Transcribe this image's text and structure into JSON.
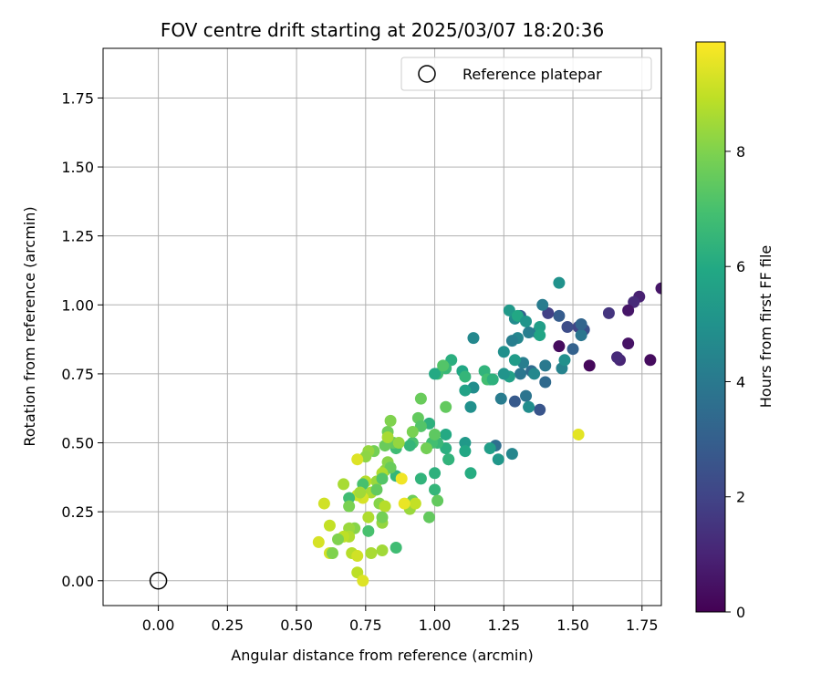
{
  "chart_data": {
    "type": "scatter",
    "title": "FOV centre drift starting at 2025/03/07 18:20:36",
    "xlabel": "Angular distance from reference (arcmin)",
    "ylabel": "Rotation from reference (arcmin)",
    "xlim": [
      -0.2,
      1.82
    ],
    "ylim": [
      -0.09,
      1.93
    ],
    "x_ticks": [
      "0.00",
      "0.25",
      "0.50",
      "0.75",
      "1.00",
      "1.25",
      "1.50",
      "1.75"
    ],
    "y_ticks": [
      "0.00",
      "0.25",
      "0.50",
      "0.75",
      "1.00",
      "1.25",
      "1.50",
      "1.75"
    ],
    "grid": true,
    "legend": {
      "position": "top-right",
      "entries": [
        {
          "label": "Reference platepar",
          "marker": "open-circle"
        }
      ]
    },
    "reference_point": {
      "x": 0.0,
      "y": 0.0
    },
    "colorbar": {
      "label": "Hours from first FF file",
      "range": [
        0,
        9.9
      ],
      "ticks": [
        "0",
        "2",
        "4",
        "6",
        "8"
      ],
      "colormap": "viridis"
    },
    "series": [
      {
        "points": [
          [
            1.45,
            0.85,
            0.3
          ],
          [
            1.56,
            0.78,
            0.2
          ],
          [
            1.7,
            0.86,
            0.5
          ],
          [
            1.78,
            0.8,
            0.3
          ],
          [
            1.67,
            0.8,
            1.0
          ],
          [
            1.66,
            0.81,
            1.2
          ],
          [
            1.82,
            1.06,
            0.6
          ],
          [
            1.74,
            1.03,
            0.9
          ],
          [
            1.72,
            1.01,
            1.2
          ],
          [
            1.7,
            0.98,
            0.6
          ],
          [
            1.63,
            0.97,
            1.5
          ],
          [
            1.52,
            0.92,
            2.0
          ],
          [
            1.54,
            0.91,
            2.4
          ],
          [
            1.45,
            0.96,
            2.9
          ],
          [
            1.41,
            0.97,
            1.9
          ],
          [
            1.48,
            0.92,
            2.3
          ],
          [
            1.5,
            0.84,
            3.1
          ],
          [
            1.38,
            0.62,
            2.6
          ],
          [
            1.29,
            0.65,
            2.8
          ],
          [
            1.33,
            0.67,
            3.8
          ],
          [
            1.4,
            0.72,
            3.4
          ],
          [
            1.4,
            0.78,
            4.0
          ],
          [
            1.46,
            0.77,
            4.4
          ],
          [
            1.47,
            0.8,
            4.9
          ],
          [
            1.53,
            0.89,
            3.9
          ],
          [
            1.53,
            0.93,
            3.2
          ],
          [
            1.37,
            0.9,
            3.6
          ],
          [
            1.34,
            0.9,
            4.2
          ],
          [
            1.31,
            0.96,
            3.0
          ],
          [
            1.39,
            1.0,
            4.1
          ],
          [
            1.45,
            1.08,
            5.0
          ],
          [
            1.29,
            0.95,
            4.7
          ],
          [
            1.3,
            0.88,
            4.5
          ],
          [
            1.28,
            0.87,
            4.2
          ],
          [
            1.32,
            0.79,
            4.2
          ],
          [
            1.31,
            0.75,
            3.9
          ],
          [
            1.35,
            0.76,
            3.5
          ],
          [
            1.36,
            0.75,
            4.6
          ],
          [
            1.34,
            0.63,
            4.8
          ],
          [
            1.24,
            0.66,
            4.1
          ],
          [
            1.22,
            0.49,
            3.6
          ],
          [
            1.28,
            0.46,
            4.5
          ],
          [
            1.27,
            0.98,
            5.3
          ],
          [
            1.3,
            0.96,
            5.9
          ],
          [
            1.33,
            0.94,
            5.1
          ],
          [
            1.38,
            0.92,
            5.5
          ],
          [
            1.38,
            0.89,
            5.8
          ],
          [
            1.25,
            0.83,
            4.9
          ],
          [
            1.29,
            0.8,
            5.4
          ],
          [
            1.27,
            0.74,
            5.6
          ],
          [
            1.25,
            0.75,
            5.1
          ],
          [
            1.14,
            0.88,
            4.6
          ],
          [
            1.14,
            0.7,
            4.8
          ],
          [
            1.13,
            0.63,
            4.9
          ],
          [
            1.11,
            0.69,
            5.7
          ],
          [
            1.06,
            0.8,
            6.2
          ],
          [
            1.1,
            0.76,
            5.9
          ],
          [
            1.04,
            0.77,
            6.6
          ],
          [
            1.01,
            0.75,
            6.8
          ],
          [
            1.0,
            0.75,
            6.0
          ],
          [
            1.2,
            0.73,
            5.8
          ],
          [
            1.18,
            0.76,
            6.4
          ],
          [
            1.19,
            0.73,
            6.9
          ],
          [
            1.21,
            0.73,
            6.3
          ],
          [
            1.11,
            0.74,
            6.5
          ],
          [
            1.03,
            0.78,
            7.2
          ],
          [
            1.11,
            0.5,
            5.3
          ],
          [
            1.11,
            0.47,
            5.9
          ],
          [
            1.04,
            0.53,
            6.0
          ],
          [
            1.04,
            0.48,
            6.2
          ],
          [
            1.05,
            0.44,
            5.7
          ],
          [
            1.13,
            0.39,
            6.1
          ],
          [
            1.23,
            0.44,
            5.2
          ],
          [
            1.2,
            0.48,
            5.5
          ],
          [
            1.05,
            0.44,
            6.4
          ],
          [
            1.01,
            0.5,
            6.6
          ],
          [
            0.98,
            0.57,
            6.3
          ],
          [
            0.99,
            0.5,
            6.9
          ],
          [
            1.0,
            0.53,
            7.4
          ],
          [
            1.04,
            0.63,
            7.5
          ],
          [
            0.95,
            0.66,
            7.6
          ],
          [
            0.94,
            0.59,
            7.5
          ],
          [
            0.95,
            0.56,
            7.2
          ],
          [
            0.92,
            0.5,
            7.0
          ],
          [
            0.91,
            0.49,
            6.5
          ],
          [
            0.92,
            0.54,
            7.9
          ],
          [
            0.97,
            0.48,
            7.8
          ],
          [
            0.86,
            0.48,
            6.8
          ],
          [
            0.85,
            0.5,
            7.5
          ],
          [
            0.82,
            0.49,
            7.6
          ],
          [
            0.83,
            0.54,
            7.7
          ],
          [
            0.84,
            0.58,
            8.0
          ],
          [
            1.0,
            0.39,
            6.3
          ],
          [
            1.0,
            0.33,
            6.5
          ],
          [
            1.01,
            0.29,
            7.5
          ],
          [
            0.95,
            0.37,
            6.4
          ],
          [
            0.98,
            0.23,
            7.5
          ],
          [
            0.92,
            0.29,
            7.7
          ],
          [
            0.91,
            0.26,
            8.4
          ],
          [
            0.93,
            0.28,
            9.0
          ],
          [
            0.86,
            0.12,
            6.8
          ],
          [
            0.86,
            0.38,
            6.5
          ],
          [
            0.83,
            0.43,
            8.1
          ],
          [
            0.82,
            0.4,
            8.2
          ],
          [
            0.84,
            0.41,
            7.6
          ],
          [
            0.81,
            0.39,
            8.7
          ],
          [
            0.78,
            0.47,
            7.8
          ],
          [
            0.76,
            0.47,
            8.3
          ],
          [
            0.75,
            0.45,
            8.2
          ],
          [
            0.72,
            0.44,
            9.4
          ],
          [
            0.79,
            0.36,
            8.4
          ],
          [
            0.77,
            0.32,
            8.6
          ],
          [
            0.75,
            0.36,
            8.8
          ],
          [
            0.74,
            0.35,
            7.0
          ],
          [
            0.74,
            0.3,
            9.3
          ],
          [
            0.72,
            0.31,
            9.1
          ],
          [
            0.73,
            0.32,
            8.5
          ],
          [
            0.69,
            0.3,
            6.8
          ],
          [
            0.81,
            0.37,
            7.2
          ],
          [
            0.79,
            0.33,
            7.5
          ],
          [
            0.8,
            0.28,
            8.1
          ],
          [
            0.82,
            0.27,
            8.8
          ],
          [
            0.81,
            0.21,
            8.3
          ],
          [
            0.81,
            0.23,
            7.8
          ],
          [
            0.76,
            0.23,
            8.7
          ],
          [
            0.76,
            0.18,
            7.0
          ],
          [
            0.71,
            0.19,
            8.1
          ],
          [
            0.69,
            0.19,
            8.4
          ],
          [
            0.69,
            0.16,
            8.7
          ],
          [
            0.67,
            0.16,
            8.9
          ],
          [
            0.65,
            0.15,
            8.0
          ],
          [
            0.62,
            0.1,
            9.2
          ],
          [
            0.63,
            0.1,
            8.0
          ],
          [
            0.62,
            0.2,
            9.0
          ],
          [
            0.58,
            0.14,
            9.3
          ],
          [
            0.6,
            0.28,
            9.2
          ],
          [
            0.69,
            0.27,
            7.9
          ],
          [
            0.67,
            0.35,
            8.6
          ],
          [
            0.7,
            0.1,
            8.8
          ],
          [
            0.72,
            0.09,
            9.2
          ],
          [
            0.72,
            0.03,
            8.9
          ],
          [
            0.74,
            0.0,
            9.4
          ],
          [
            0.77,
            0.1,
            8.6
          ],
          [
            0.81,
            0.11,
            8.5
          ],
          [
            0.88,
            0.37,
            9.7
          ],
          [
            0.89,
            0.28,
            9.6
          ],
          [
            0.83,
            0.52,
            8.6
          ],
          [
            0.87,
            0.5,
            8.3
          ],
          [
            1.52,
            0.53,
            9.5
          ]
        ]
      }
    ]
  }
}
